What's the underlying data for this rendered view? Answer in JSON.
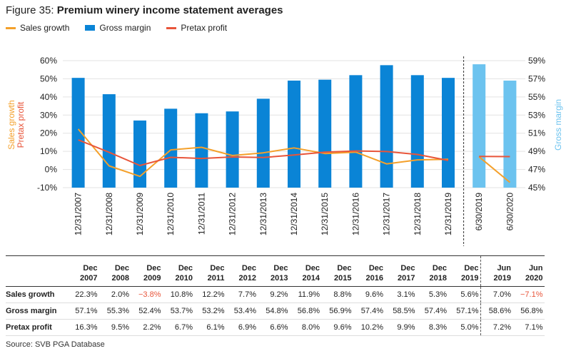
{
  "figure": {
    "label": "Figure 35:",
    "title": "Premium winery income statement averages"
  },
  "legend": [
    {
      "name": "Sales growth",
      "color": "#f4a02a"
    },
    {
      "name": "Gross margin",
      "color": "#0a84d6"
    },
    {
      "name": "Pretax profit",
      "color": "#e8553a"
    }
  ],
  "colors": {
    "bar": "#0a84d6",
    "bar_light": "#6cc3ef",
    "sales": "#f4a02a",
    "pretax": "#e8553a",
    "neg": "#e8553a"
  },
  "chart_data": {
    "type": "bar",
    "title": "Premium winery income statement averages",
    "categories": [
      "12/31/2007",
      "12/31/2008",
      "12/31/2009",
      "12/31/2010",
      "12/31/2011",
      "12/31/2012",
      "12/31/2013",
      "12/31/2014",
      "12/31/2015",
      "12/31/2016",
      "12/31/2017",
      "12/31/2018",
      "12/31/2019",
      "6/30/2019",
      "6/30/2020"
    ],
    "y_left_label": "Sales growth\nPretax profit",
    "y_left_ticks": [
      "60%",
      "50%",
      "40%",
      "30%",
      "20%",
      "10%",
      "0%",
      "-10%"
    ],
    "y_left_lim": [
      -10,
      60
    ],
    "y_right_label": "Gross margin",
    "y_right_ticks": [
      "59%",
      "57%",
      "55%",
      "53%",
      "51%",
      "49%",
      "47%",
      "45%"
    ],
    "y_right_lim": [
      45,
      59
    ],
    "series": [
      {
        "name": "Gross margin",
        "kind": "bar",
        "axis": "right",
        "values": [
          57.1,
          55.3,
          52.4,
          53.7,
          53.2,
          53.4,
          54.8,
          56.8,
          56.9,
          57.4,
          58.5,
          57.4,
          57.1,
          58.6,
          56.8
        ]
      },
      {
        "name": "Sales growth",
        "kind": "line",
        "axis": "left",
        "values": [
          22.3,
          2.0,
          -3.8,
          10.8,
          12.2,
          7.7,
          9.2,
          11.9,
          8.8,
          9.6,
          3.1,
          5.3,
          5.6,
          7.0,
          -7.1
        ]
      },
      {
        "name": "Pretax profit",
        "kind": "line",
        "axis": "left",
        "values": [
          16.3,
          9.5,
          2.2,
          6.7,
          6.1,
          6.9,
          6.6,
          8.0,
          9.6,
          10.2,
          9.9,
          8.3,
          5.0,
          7.2,
          7.1
        ]
      }
    ]
  },
  "table": {
    "headers": [
      [
        "Dec",
        "2007"
      ],
      [
        "Dec",
        "2008"
      ],
      [
        "Dec",
        "2009"
      ],
      [
        "Dec",
        "2010"
      ],
      [
        "Dec",
        "2011"
      ],
      [
        "Dec",
        "2012"
      ],
      [
        "Dec",
        "2013"
      ],
      [
        "Dec",
        "2014"
      ],
      [
        "Dec",
        "2015"
      ],
      [
        "Dec",
        "2016"
      ],
      [
        "Dec",
        "2017"
      ],
      [
        "Dec",
        "2018"
      ],
      [
        "Dec",
        "2019"
      ],
      [
        "Jun",
        "2019"
      ],
      [
        "Jun",
        "2020"
      ]
    ],
    "rows": [
      {
        "label": "Sales growth",
        "values": [
          "22.3%",
          "2.0%",
          "−3.8%",
          "10.8%",
          "12.2%",
          "7.7%",
          "9.2%",
          "11.9%",
          "8.8%",
          "9.6%",
          "3.1%",
          "5.3%",
          "5.6%",
          "7.0%",
          "−7.1%"
        ]
      },
      {
        "label": "Gross margin",
        "values": [
          "57.1%",
          "55.3%",
          "52.4%",
          "53.7%",
          "53.2%",
          "53.4%",
          "54.8%",
          "56.8%",
          "56.9%",
          "57.4%",
          "58.5%",
          "57.4%",
          "57.1%",
          "58.6%",
          "56.8%"
        ]
      },
      {
        "label": "Pretax profit",
        "values": [
          "16.3%",
          "9.5%",
          "2.2%",
          "6.7%",
          "6.1%",
          "6.9%",
          "6.6%",
          "8.0%",
          "9.6%",
          "10.2%",
          "9.9%",
          "8.3%",
          "5.0%",
          "7.2%",
          "7.1%"
        ]
      }
    ]
  },
  "source": "Source: SVB PGA Database"
}
